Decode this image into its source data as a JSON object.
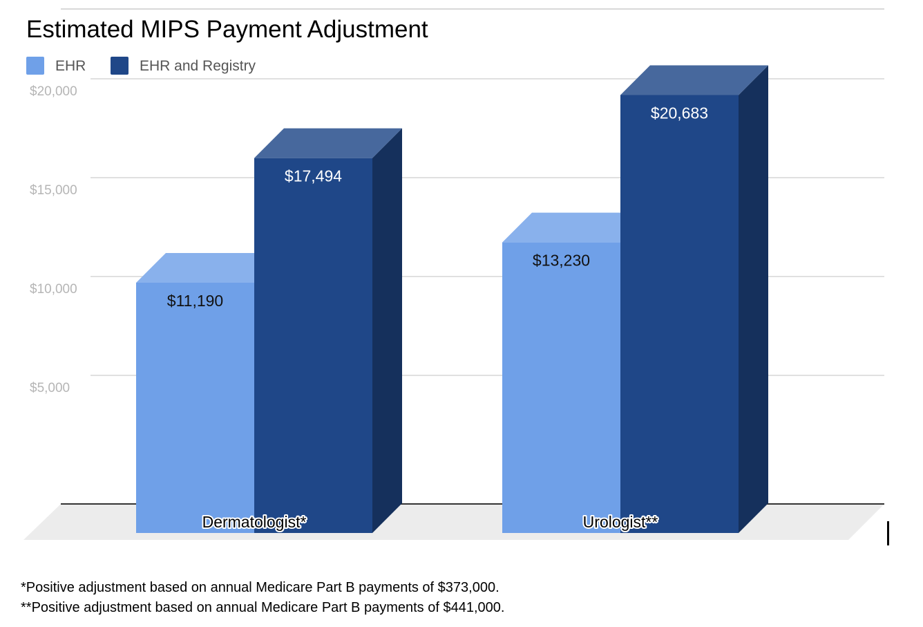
{
  "chart_data": {
    "type": "bar",
    "title": "Estimated MIPS Payment Adjustment",
    "categories": [
      "Dermatologist*",
      "Urologist**"
    ],
    "series": [
      {
        "name": "EHR",
        "values": [
          11190,
          13230
        ],
        "labels": [
          "$11,190",
          "$13,230"
        ],
        "color": "#6FA0E8"
      },
      {
        "name": "EHR and Registry",
        "values": [
          17494,
          20683
        ],
        "labels": [
          "$17,494",
          "$20,683"
        ],
        "color": "#1F4788"
      }
    ],
    "ylim": [
      0,
      20000
    ],
    "yticks": [
      5000,
      10000,
      15000,
      20000
    ],
    "ytick_labels": [
      "$5,000",
      "$10,000",
      "$15,000",
      "$20,000"
    ],
    "xlabel": "",
    "ylabel": "",
    "grid": true,
    "legend": "top-left",
    "style": "3d"
  },
  "footnotes": [
    "*Positive adjustment based on annual Medicare Part B payments of $373,000.",
    "**Positive adjustment based on annual Medicare Part B payments of $441,000."
  ]
}
